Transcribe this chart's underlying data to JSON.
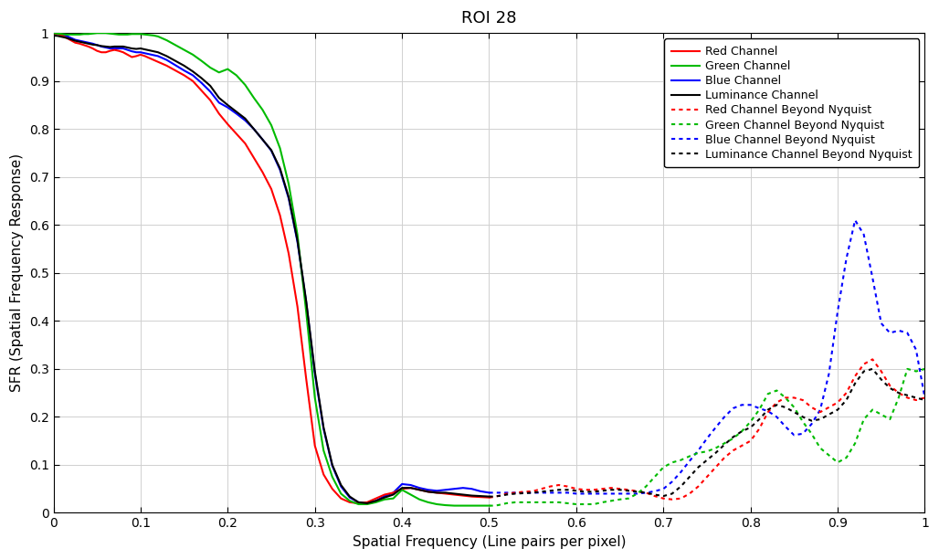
{
  "title": "ROI 28",
  "xlabel": "Spatial Frequency (Line pairs per pixel)",
  "ylabel": "SFR (Spatial Frequency Response)",
  "xlim": [
    0,
    1
  ],
  "ylim": [
    0,
    1.0
  ],
  "ytick_vals": [
    0,
    0.1,
    0.2,
    0.3,
    0.4,
    0.5,
    0.6,
    0.7,
    0.8,
    0.9,
    1.0
  ],
  "xtick_vals": [
    0,
    0.1,
    0.2,
    0.3,
    0.4,
    0.5,
    0.6,
    0.7,
    0.8,
    0.9,
    1.0
  ],
  "background_color": "#ffffff",
  "grid_color": "#d0d0d0",
  "channels": {
    "red": {
      "color": "#ff0000",
      "solid_x": [
        0.0,
        0.005,
        0.01,
        0.015,
        0.02,
        0.025,
        0.03,
        0.035,
        0.04,
        0.045,
        0.05,
        0.055,
        0.06,
        0.065,
        0.07,
        0.075,
        0.08,
        0.085,
        0.09,
        0.095,
        0.1,
        0.105,
        0.11,
        0.115,
        0.12,
        0.13,
        0.14,
        0.15,
        0.16,
        0.17,
        0.18,
        0.19,
        0.2,
        0.21,
        0.22,
        0.23,
        0.24,
        0.25,
        0.26,
        0.27,
        0.28,
        0.29,
        0.3,
        0.31,
        0.32,
        0.33,
        0.34,
        0.35,
        0.36,
        0.37,
        0.38,
        0.39,
        0.4,
        0.41,
        0.42,
        0.43,
        0.44,
        0.45,
        0.46,
        0.47,
        0.48,
        0.49,
        0.5
      ],
      "solid_y": [
        1.0,
        0.998,
        0.995,
        0.99,
        0.985,
        0.98,
        0.978,
        0.975,
        0.972,
        0.968,
        0.963,
        0.96,
        0.96,
        0.963,
        0.965,
        0.963,
        0.96,
        0.955,
        0.95,
        0.952,
        0.955,
        0.952,
        0.948,
        0.944,
        0.94,
        0.932,
        0.922,
        0.912,
        0.9,
        0.88,
        0.86,
        0.832,
        0.81,
        0.79,
        0.77,
        0.74,
        0.71,
        0.675,
        0.62,
        0.54,
        0.43,
        0.28,
        0.14,
        0.08,
        0.05,
        0.03,
        0.022,
        0.02,
        0.022,
        0.03,
        0.038,
        0.042,
        0.05,
        0.052,
        0.048,
        0.044,
        0.042,
        0.04,
        0.038,
        0.036,
        0.034,
        0.033,
        0.032
      ],
      "dashed_x": [
        0.5,
        0.505,
        0.51,
        0.515,
        0.52,
        0.53,
        0.54,
        0.55,
        0.56,
        0.57,
        0.58,
        0.59,
        0.6,
        0.61,
        0.62,
        0.63,
        0.64,
        0.65,
        0.66,
        0.67,
        0.68,
        0.69,
        0.7,
        0.71,
        0.72,
        0.73,
        0.74,
        0.75,
        0.76,
        0.77,
        0.78,
        0.79,
        0.8,
        0.81,
        0.82,
        0.83,
        0.84,
        0.85,
        0.86,
        0.87,
        0.88,
        0.89,
        0.9,
        0.91,
        0.92,
        0.93,
        0.94,
        0.95,
        0.96,
        0.97,
        0.98,
        0.99,
        1.0
      ],
      "dashed_y": [
        0.032,
        0.033,
        0.035,
        0.037,
        0.04,
        0.042,
        0.044,
        0.045,
        0.05,
        0.055,
        0.058,
        0.055,
        0.05,
        0.048,
        0.048,
        0.05,
        0.052,
        0.05,
        0.048,
        0.045,
        0.042,
        0.035,
        0.03,
        0.028,
        0.03,
        0.04,
        0.055,
        0.075,
        0.095,
        0.115,
        0.13,
        0.14,
        0.15,
        0.175,
        0.21,
        0.23,
        0.24,
        0.24,
        0.235,
        0.22,
        0.21,
        0.22,
        0.23,
        0.25,
        0.285,
        0.31,
        0.32,
        0.295,
        0.265,
        0.25,
        0.24,
        0.235,
        0.24
      ]
    },
    "green": {
      "color": "#00bb00",
      "solid_x": [
        0.0,
        0.005,
        0.01,
        0.015,
        0.02,
        0.025,
        0.03,
        0.035,
        0.04,
        0.045,
        0.05,
        0.055,
        0.06,
        0.065,
        0.07,
        0.075,
        0.08,
        0.085,
        0.09,
        0.095,
        0.1,
        0.105,
        0.11,
        0.115,
        0.12,
        0.13,
        0.14,
        0.15,
        0.16,
        0.17,
        0.18,
        0.19,
        0.2,
        0.21,
        0.22,
        0.23,
        0.24,
        0.25,
        0.26,
        0.27,
        0.28,
        0.29,
        0.3,
        0.31,
        0.32,
        0.33,
        0.34,
        0.35,
        0.36,
        0.37,
        0.38,
        0.39,
        0.4,
        0.41,
        0.42,
        0.43,
        0.44,
        0.45,
        0.46,
        0.47,
        0.48,
        0.49,
        0.5
      ],
      "solid_y": [
        1.0,
        0.999,
        0.998,
        0.997,
        0.997,
        0.997,
        0.997,
        0.998,
        0.998,
        0.999,
        1.0,
        1.0,
        1.0,
        0.999,
        0.998,
        0.997,
        0.997,
        0.997,
        0.998,
        0.998,
        0.998,
        0.997,
        0.996,
        0.995,
        0.993,
        0.985,
        0.975,
        0.965,
        0.955,
        0.942,
        0.928,
        0.918,
        0.925,
        0.912,
        0.892,
        0.865,
        0.84,
        0.808,
        0.76,
        0.685,
        0.58,
        0.42,
        0.24,
        0.13,
        0.075,
        0.04,
        0.025,
        0.018,
        0.018,
        0.022,
        0.028,
        0.03,
        0.048,
        0.038,
        0.028,
        0.022,
        0.018,
        0.016,
        0.015,
        0.015,
        0.015,
        0.015,
        0.015
      ],
      "dashed_x": [
        0.5,
        0.505,
        0.51,
        0.515,
        0.52,
        0.53,
        0.54,
        0.55,
        0.56,
        0.57,
        0.58,
        0.59,
        0.6,
        0.61,
        0.62,
        0.63,
        0.64,
        0.65,
        0.66,
        0.67,
        0.68,
        0.69,
        0.7,
        0.71,
        0.72,
        0.73,
        0.74,
        0.75,
        0.76,
        0.77,
        0.78,
        0.79,
        0.8,
        0.81,
        0.82,
        0.83,
        0.84,
        0.85,
        0.86,
        0.87,
        0.88,
        0.89,
        0.9,
        0.91,
        0.92,
        0.93,
        0.94,
        0.95,
        0.96,
        0.97,
        0.98,
        0.99,
        1.0
      ],
      "dashed_y": [
        0.015,
        0.015,
        0.016,
        0.018,
        0.02,
        0.022,
        0.022,
        0.022,
        0.022,
        0.022,
        0.022,
        0.02,
        0.018,
        0.018,
        0.018,
        0.022,
        0.025,
        0.028,
        0.03,
        0.04,
        0.055,
        0.075,
        0.095,
        0.105,
        0.11,
        0.118,
        0.125,
        0.128,
        0.135,
        0.145,
        0.155,
        0.17,
        0.19,
        0.215,
        0.248,
        0.255,
        0.24,
        0.22,
        0.19,
        0.165,
        0.135,
        0.12,
        0.105,
        0.115,
        0.145,
        0.195,
        0.215,
        0.205,
        0.195,
        0.24,
        0.3,
        0.295,
        0.3
      ]
    },
    "blue": {
      "color": "#0000ff",
      "solid_x": [
        0.0,
        0.005,
        0.01,
        0.015,
        0.02,
        0.025,
        0.03,
        0.035,
        0.04,
        0.045,
        0.05,
        0.055,
        0.06,
        0.065,
        0.07,
        0.075,
        0.08,
        0.085,
        0.09,
        0.095,
        0.1,
        0.105,
        0.11,
        0.115,
        0.12,
        0.13,
        0.14,
        0.15,
        0.16,
        0.17,
        0.18,
        0.19,
        0.2,
        0.21,
        0.22,
        0.23,
        0.24,
        0.25,
        0.26,
        0.27,
        0.28,
        0.29,
        0.3,
        0.31,
        0.32,
        0.33,
        0.34,
        0.35,
        0.36,
        0.37,
        0.38,
        0.39,
        0.4,
        0.41,
        0.42,
        0.43,
        0.44,
        0.45,
        0.46,
        0.47,
        0.48,
        0.49,
        0.5
      ],
      "solid_y": [
        1.0,
        0.999,
        0.997,
        0.994,
        0.99,
        0.986,
        0.984,
        0.982,
        0.98,
        0.978,
        0.975,
        0.972,
        0.97,
        0.968,
        0.968,
        0.968,
        0.968,
        0.965,
        0.962,
        0.96,
        0.96,
        0.958,
        0.956,
        0.954,
        0.952,
        0.944,
        0.933,
        0.922,
        0.912,
        0.896,
        0.878,
        0.855,
        0.845,
        0.832,
        0.818,
        0.8,
        0.778,
        0.755,
        0.715,
        0.655,
        0.565,
        0.44,
        0.29,
        0.175,
        0.098,
        0.055,
        0.032,
        0.022,
        0.02,
        0.025,
        0.035,
        0.042,
        0.06,
        0.058,
        0.052,
        0.048,
        0.046,
        0.048,
        0.05,
        0.052,
        0.05,
        0.045,
        0.042
      ],
      "dashed_x": [
        0.5,
        0.505,
        0.51,
        0.515,
        0.52,
        0.53,
        0.54,
        0.55,
        0.56,
        0.57,
        0.58,
        0.59,
        0.6,
        0.61,
        0.62,
        0.63,
        0.64,
        0.65,
        0.66,
        0.67,
        0.68,
        0.69,
        0.7,
        0.71,
        0.72,
        0.73,
        0.74,
        0.75,
        0.76,
        0.77,
        0.78,
        0.79,
        0.8,
        0.81,
        0.82,
        0.83,
        0.84,
        0.85,
        0.86,
        0.87,
        0.88,
        0.89,
        0.9,
        0.91,
        0.92,
        0.93,
        0.94,
        0.95,
        0.96,
        0.97,
        0.98,
        0.99,
        1.0
      ],
      "dashed_y": [
        0.042,
        0.042,
        0.042,
        0.042,
        0.042,
        0.042,
        0.042,
        0.042,
        0.042,
        0.042,
        0.042,
        0.042,
        0.04,
        0.04,
        0.04,
        0.04,
        0.04,
        0.04,
        0.04,
        0.04,
        0.042,
        0.045,
        0.05,
        0.065,
        0.085,
        0.108,
        0.13,
        0.155,
        0.178,
        0.2,
        0.218,
        0.225,
        0.225,
        0.218,
        0.212,
        0.2,
        0.18,
        0.162,
        0.165,
        0.185,
        0.215,
        0.29,
        0.42,
        0.53,
        0.61,
        0.58,
        0.49,
        0.395,
        0.375,
        0.38,
        0.375,
        0.34,
        0.24
      ]
    },
    "luminance": {
      "color": "#000000",
      "solid_x": [
        0.0,
        0.005,
        0.01,
        0.015,
        0.02,
        0.025,
        0.03,
        0.035,
        0.04,
        0.045,
        0.05,
        0.055,
        0.06,
        0.065,
        0.07,
        0.075,
        0.08,
        0.085,
        0.09,
        0.095,
        0.1,
        0.105,
        0.11,
        0.115,
        0.12,
        0.13,
        0.14,
        0.15,
        0.16,
        0.17,
        0.18,
        0.19,
        0.2,
        0.21,
        0.22,
        0.23,
        0.24,
        0.25,
        0.26,
        0.27,
        0.28,
        0.29,
        0.3,
        0.31,
        0.32,
        0.33,
        0.34,
        0.35,
        0.36,
        0.37,
        0.38,
        0.39,
        0.4,
        0.41,
        0.42,
        0.43,
        0.44,
        0.45,
        0.46,
        0.47,
        0.48,
        0.49,
        0.5
      ],
      "solid_y": [
        0.995,
        0.994,
        0.992,
        0.99,
        0.987,
        0.984,
        0.982,
        0.98,
        0.978,
        0.976,
        0.975,
        0.973,
        0.972,
        0.971,
        0.972,
        0.972,
        0.972,
        0.97,
        0.968,
        0.967,
        0.968,
        0.966,
        0.964,
        0.962,
        0.96,
        0.952,
        0.942,
        0.932,
        0.92,
        0.906,
        0.89,
        0.865,
        0.85,
        0.836,
        0.822,
        0.8,
        0.778,
        0.756,
        0.718,
        0.658,
        0.568,
        0.442,
        0.295,
        0.178,
        0.1,
        0.058,
        0.034,
        0.022,
        0.02,
        0.025,
        0.032,
        0.038,
        0.052,
        0.052,
        0.048,
        0.044,
        0.042,
        0.042,
        0.04,
        0.038,
        0.036,
        0.035,
        0.034
      ],
      "dashed_x": [
        0.5,
        0.505,
        0.51,
        0.515,
        0.52,
        0.53,
        0.54,
        0.55,
        0.56,
        0.57,
        0.58,
        0.59,
        0.6,
        0.61,
        0.62,
        0.63,
        0.64,
        0.65,
        0.66,
        0.67,
        0.68,
        0.69,
        0.7,
        0.71,
        0.72,
        0.73,
        0.74,
        0.75,
        0.76,
        0.77,
        0.78,
        0.79,
        0.8,
        0.81,
        0.82,
        0.83,
        0.84,
        0.85,
        0.86,
        0.87,
        0.88,
        0.89,
        0.9,
        0.91,
        0.92,
        0.93,
        0.94,
        0.95,
        0.96,
        0.97,
        0.98,
        0.99,
        1.0
      ],
      "dashed_y": [
        0.034,
        0.034,
        0.035,
        0.036,
        0.038,
        0.04,
        0.041,
        0.042,
        0.044,
        0.046,
        0.048,
        0.048,
        0.046,
        0.044,
        0.044,
        0.046,
        0.048,
        0.048,
        0.046,
        0.044,
        0.042,
        0.038,
        0.035,
        0.04,
        0.055,
        0.075,
        0.095,
        0.11,
        0.125,
        0.142,
        0.158,
        0.17,
        0.178,
        0.195,
        0.215,
        0.225,
        0.22,
        0.21,
        0.2,
        0.192,
        0.195,
        0.205,
        0.215,
        0.235,
        0.27,
        0.295,
        0.3,
        0.278,
        0.26,
        0.25,
        0.245,
        0.24,
        0.235
      ]
    }
  },
  "legend_labels": {
    "red_solid": "Red Channel",
    "green_solid": "Green Channel",
    "blue_solid": "Blue Channel",
    "lum_solid": "Luminance Channel",
    "red_dashed": "Red Channel Beyond Nyquist",
    "green_dashed": "Green Channel Beyond Nyquist",
    "blue_dashed": "Blue Channel Beyond Nyquist",
    "lum_dashed": "Luminance Channel Beyond Nyquist"
  },
  "figsize": [
    10.28,
    6.12
  ],
  "dpi": 100
}
